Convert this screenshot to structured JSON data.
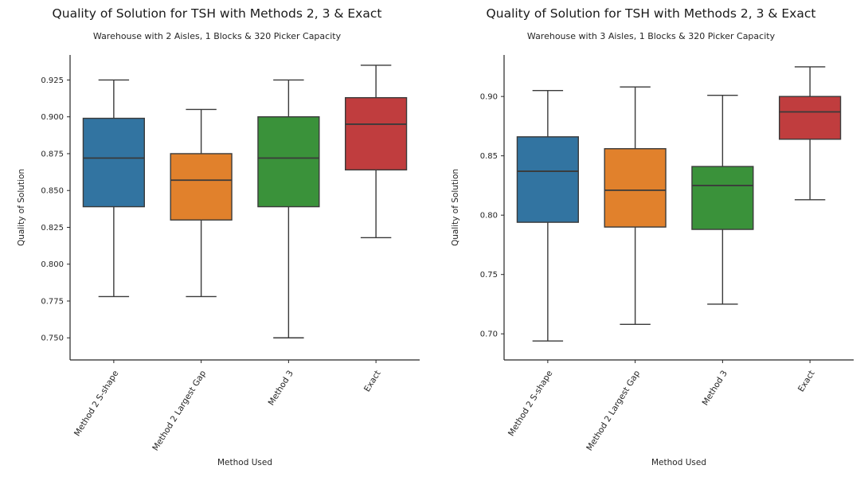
{
  "page": {
    "background": "#ffffff"
  },
  "chart_data": [
    {
      "type": "boxplot",
      "title": "Quality of Solution for TSH with Methods 2, 3 & Exact",
      "subtitle": "Warehouse with 2 Aisles, 1 Blocks & 320 Picker Capacity",
      "xlabel": "Method Used",
      "ylabel": "Quality of Solution",
      "ylim": [
        0.735,
        0.942
      ],
      "yticks": [
        0.75,
        0.775,
        0.8,
        0.825,
        0.85,
        0.875,
        0.9,
        0.925
      ],
      "ytick_labels": [
        "0.750",
        "0.775",
        "0.800",
        "0.825",
        "0.850",
        "0.875",
        "0.900",
        "0.925"
      ],
      "categories": [
        "Method 2 S-shape",
        "Method 2 Largest Gap",
        "Method 3",
        "Exact"
      ],
      "box_colors": [
        "#3274a1",
        "#e1812c",
        "#3a923a",
        "#c03d3e"
      ],
      "edge_color": "#3a3a3a",
      "axis_color": "#262626",
      "boxes": [
        {
          "whisker_low": 0.778,
          "q1": 0.839,
          "median": 0.872,
          "q3": 0.899,
          "whisker_high": 0.925
        },
        {
          "whisker_low": 0.778,
          "q1": 0.83,
          "median": 0.857,
          "q3": 0.875,
          "whisker_high": 0.905
        },
        {
          "whisker_low": 0.75,
          "q1": 0.839,
          "median": 0.872,
          "q3": 0.9,
          "whisker_high": 0.925
        },
        {
          "whisker_low": 0.818,
          "q1": 0.864,
          "median": 0.895,
          "q3": 0.913,
          "whisker_high": 0.935
        }
      ]
    },
    {
      "type": "boxplot",
      "title": "Quality of Solution for TSH with Methods 2, 3 & Exact",
      "subtitle": "Warehouse with 3 Aisles, 1 Blocks & 320 Picker Capacity",
      "xlabel": "Method Used",
      "ylabel": "Quality of Solution",
      "ylim": [
        0.678,
        0.935
      ],
      "yticks": [
        0.7,
        0.75,
        0.8,
        0.85,
        0.9
      ],
      "ytick_labels": [
        "0.70",
        "0.75",
        "0.80",
        "0.85",
        "0.90"
      ],
      "categories": [
        "Method 2 S-shape",
        "Method 2 Largest Gap",
        "Method 3",
        "Exact"
      ],
      "box_colors": [
        "#3274a1",
        "#e1812c",
        "#3a923a",
        "#c03d3e"
      ],
      "edge_color": "#3a3a3a",
      "axis_color": "#262626",
      "boxes": [
        {
          "whisker_low": 0.694,
          "q1": 0.794,
          "median": 0.837,
          "q3": 0.866,
          "whisker_high": 0.905
        },
        {
          "whisker_low": 0.708,
          "q1": 0.79,
          "median": 0.821,
          "q3": 0.856,
          "whisker_high": 0.908
        },
        {
          "whisker_low": 0.725,
          "q1": 0.788,
          "median": 0.825,
          "q3": 0.841,
          "whisker_high": 0.901
        },
        {
          "whisker_low": 0.813,
          "q1": 0.864,
          "median": 0.887,
          "q3": 0.9,
          "whisker_high": 0.925
        }
      ]
    }
  ]
}
